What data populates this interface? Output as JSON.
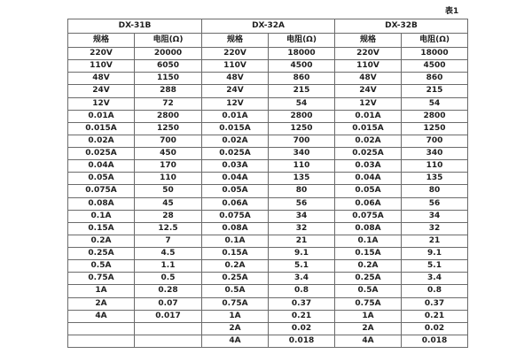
{
  "caption": "表1",
  "table": {
    "groups": [
      {
        "name": "DX-31B",
        "spec_label": "规格",
        "res_label": "电阻(Ω)"
      },
      {
        "name": "DX-32A",
        "spec_label": "规格",
        "res_label": "电阻(Ω)"
      },
      {
        "name": "DX-32B",
        "spec_label": "规格",
        "res_label": "电阻(Ω)"
      }
    ],
    "rows": [
      [
        "220V",
        "20000",
        "220V",
        "18000",
        "220V",
        "18000"
      ],
      [
        "110V",
        "6050",
        "110V",
        "4500",
        "110V",
        "4500"
      ],
      [
        "48V",
        "1150",
        "48V",
        "860",
        "48V",
        "860"
      ],
      [
        "24V",
        "288",
        "24V",
        "215",
        "24V",
        "215"
      ],
      [
        "12V",
        "72",
        "12V",
        "54",
        "12V",
        "54"
      ],
      [
        "0.01A",
        "2800",
        "0.01A",
        "2800",
        "0.01A",
        "2800"
      ],
      [
        "0.015A",
        "1250",
        "0.015A",
        "1250",
        "0.015A",
        "1250"
      ],
      [
        "0.02A",
        "700",
        "0.02A",
        "700",
        "0.02A",
        "700"
      ],
      [
        "0.025A",
        "450",
        "0.025A",
        "340",
        "0.025A",
        "340"
      ],
      [
        "0.04A",
        "170",
        "0.03A",
        "110",
        "0.03A",
        "110"
      ],
      [
        "0.05A",
        "110",
        "0.04A",
        "135",
        "0.04A",
        "135"
      ],
      [
        "0.075A",
        "50",
        "0.05A",
        "80",
        "0.05A",
        "80"
      ],
      [
        "0.08A",
        "45",
        "0.06A",
        "56",
        "0.06A",
        "56"
      ],
      [
        "0.1A",
        "28",
        "0.075A",
        "34",
        "0.075A",
        "34"
      ],
      [
        "0.15A",
        "12.5",
        "0.08A",
        "32",
        "0.08A",
        "32"
      ],
      [
        "0.2A",
        "7",
        "0.1A",
        "21",
        "0.1A",
        "21"
      ],
      [
        "0.25A",
        "4.5",
        "0.15A",
        "9.1",
        "0.15A",
        "9.1"
      ],
      [
        "0.5A",
        "1.1",
        "0.2A",
        "5.1",
        "0.2A",
        "5.1"
      ],
      [
        "0.75A",
        "0.5",
        "0.25A",
        "3.4",
        "0.25A",
        "3.4"
      ],
      [
        "1A",
        "0.28",
        "0.5A",
        "0.8",
        "0.5A",
        "0.8"
      ],
      [
        "2A",
        "0.07",
        "0.75A",
        "0.37",
        "0.75A",
        "0.37"
      ],
      [
        "4A",
        "0.017",
        "1A",
        "0.21",
        "1A",
        "0.21"
      ],
      [
        "",
        "",
        "2A",
        "0.02",
        "2A",
        "0.02"
      ],
      [
        "",
        "",
        "4A",
        "0.018",
        "4A",
        "0.018"
      ]
    ]
  }
}
